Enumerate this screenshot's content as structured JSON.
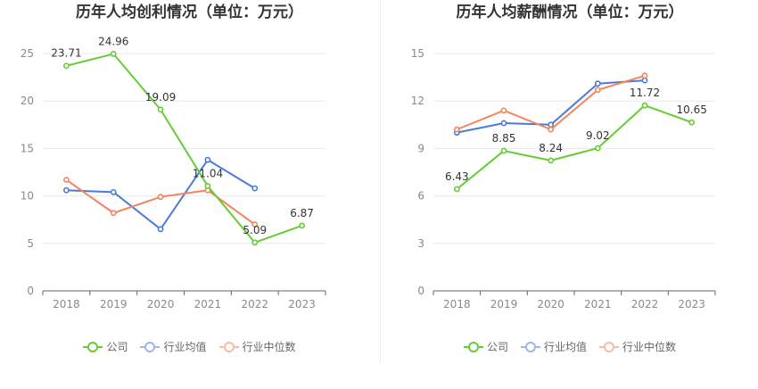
{
  "colors": {
    "company": "#66cc33",
    "industry_avg": "#4a7bd8",
    "industry_median": "#f4845f",
    "axis": "#666666",
    "grid": "#e8e8f0",
    "label": "#333333"
  },
  "chart_data": [
    {
      "type": "line",
      "title": "历年人均创利情况（单位：万元）",
      "categories": [
        "2018",
        "2019",
        "2020",
        "2021",
        "2022",
        "2023"
      ],
      "ylim": [
        0,
        25
      ],
      "yticks": [
        "0",
        "5",
        "10",
        "15",
        "20",
        "25"
      ],
      "series": [
        {
          "name": "公司",
          "values": [
            23.71,
            24.96,
            19.09,
            11.04,
            5.09,
            6.87
          ],
          "labels": [
            "23.71",
            "24.96",
            "19.09",
            "11.04",
            "5.09",
            "6.87"
          ]
        },
        {
          "name": "行业均值",
          "values": [
            10.6,
            10.4,
            6.5,
            13.8,
            10.8,
            null
          ]
        },
        {
          "name": "行业中位数",
          "values": [
            11.7,
            8.2,
            9.9,
            10.6,
            7.0,
            null
          ]
        }
      ],
      "grid": true,
      "legend_position": "bottom"
    },
    {
      "type": "line",
      "title": "历年人均薪酬情况（单位：万元）",
      "categories": [
        "2018",
        "2019",
        "2020",
        "2021",
        "2022",
        "2023"
      ],
      "ylim": [
        0,
        15
      ],
      "yticks": [
        "0",
        "3",
        "6",
        "9",
        "12",
        "15"
      ],
      "series": [
        {
          "name": "公司",
          "values": [
            6.43,
            8.85,
            8.24,
            9.02,
            11.72,
            10.65
          ],
          "labels": [
            "6.43",
            "8.85",
            "8.24",
            "9.02",
            "11.72",
            "10.65"
          ]
        },
        {
          "name": "行业均值",
          "values": [
            10.0,
            10.6,
            10.5,
            13.1,
            13.3,
            null
          ]
        },
        {
          "name": "行业中位数",
          "values": [
            10.2,
            11.4,
            10.2,
            12.7,
            13.6,
            null
          ]
        }
      ],
      "grid": true,
      "legend_position": "bottom"
    }
  ]
}
